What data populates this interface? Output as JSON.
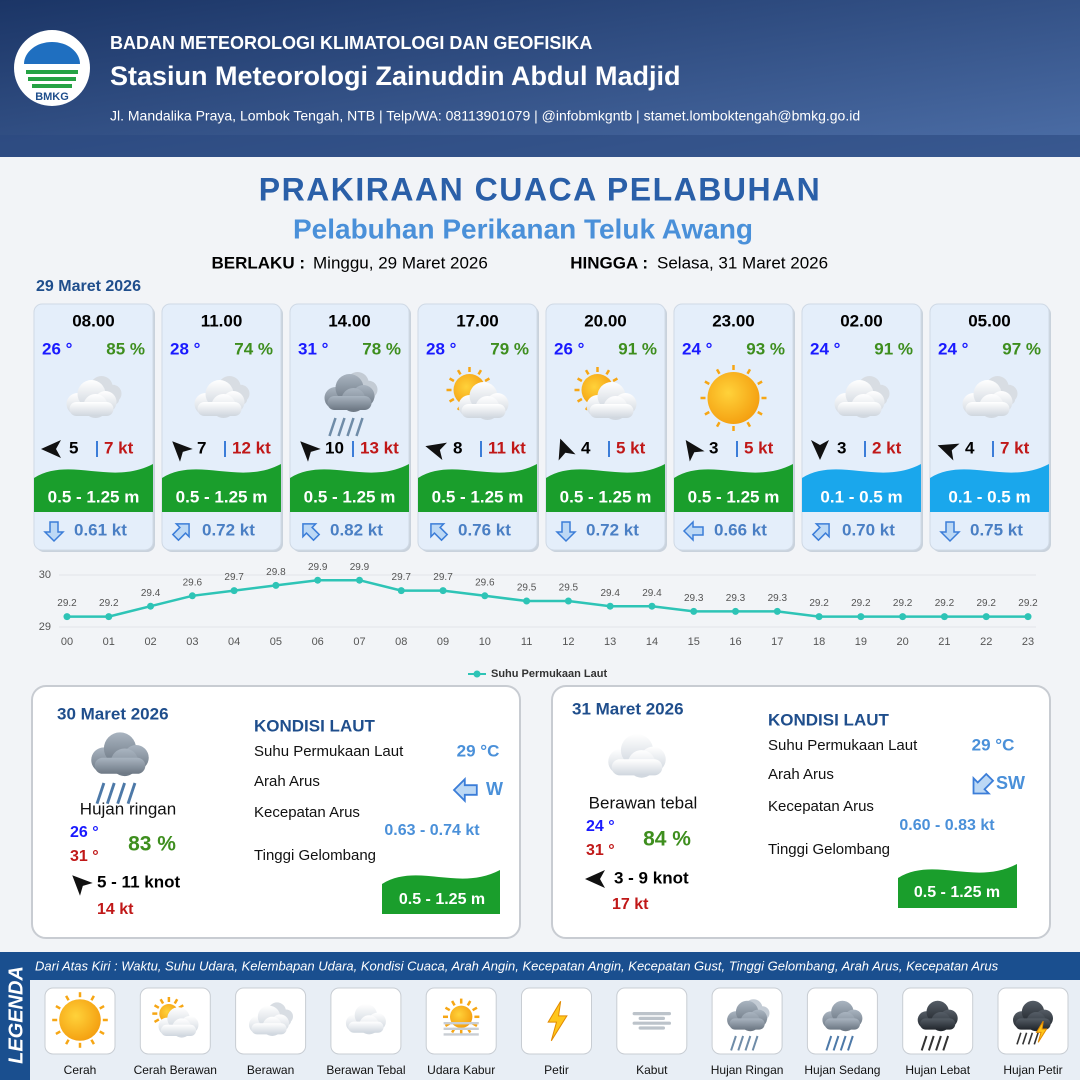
{
  "header": {
    "logo": "BMKG",
    "agency": "BADAN METEOROLOGI KLIMATOLOGI DAN GEOFISIKA",
    "station": "Stasiun Meteorologi Zainuddin Abdul Madjid",
    "address": "Jl. Mandalika Praya, Lombok Tengah, NTB | Telp/WA: 08113901079 | @infobmkgntb | stamet.lomboktengah@bmkg.go.id"
  },
  "title": "PRAKIRAAN CUACA PELABUHAN",
  "subtitle": "Pelabuhan Perikanan Teluk Awang",
  "validity": {
    "from_label": "BERLAKU :",
    "from": "Minggu, 29 Maret 2026",
    "to_label": "HINGGA :",
    "to": "Selasa, 31 Maret 2026"
  },
  "today": {
    "date": "29 Maret 2026",
    "cards": [
      {
        "time": "08.00",
        "temp": "26 °",
        "humidity": "85 %",
        "wind": "5",
        "gust": "7 kt",
        "wave": "0.5 - 1.25 m",
        "wave_color": "#1a9e2c",
        "current": "0.61 kt"
      },
      {
        "time": "11.00",
        "temp": "28 °",
        "humidity": "74 %",
        "wind": "7",
        "gust": "12 kt",
        "wave": "0.5 - 1.25 m",
        "wave_color": "#1a9e2c",
        "current": "0.72 kt"
      },
      {
        "time": "14.00",
        "temp": "31 °",
        "humidity": "78 %",
        "wind": "10",
        "gust": "13 kt",
        "wave": "0.5 - 1.25 m",
        "wave_color": "#1a9e2c",
        "current": "0.82 kt"
      },
      {
        "time": "17.00",
        "temp": "28 °",
        "humidity": "79 %",
        "wind": "8",
        "gust": "11 kt",
        "wave": "0.5 - 1.25 m",
        "wave_color": "#1a9e2c",
        "current": "0.76 kt"
      },
      {
        "time": "20.00",
        "temp": "26 °",
        "humidity": "91 %",
        "wind": "4",
        "gust": "5 kt",
        "wave": "0.5 - 1.25 m",
        "wave_color": "#1a9e2c",
        "current": "0.72 kt"
      },
      {
        "time": "23.00",
        "temp": "24 °",
        "humidity": "93 %",
        "wind": "3",
        "gust": "5 kt",
        "wave": "0.5 - 1.25 m",
        "wave_color": "#1a9e2c",
        "current": "0.66 kt"
      },
      {
        "time": "02.00",
        "temp": "24 °",
        "humidity": "91 %",
        "wind": "3",
        "gust": "2 kt",
        "wave": "0.1 - 0.5 m",
        "wave_color": "#1aa7ec",
        "current": "0.70 kt"
      },
      {
        "time": "05.00",
        "temp": "24 °",
        "humidity": "97 %",
        "wind": "4",
        "gust": "7 kt",
        "wave": "0.1 - 0.5 m",
        "wave_color": "#1aa7ec",
        "current": "0.75 kt"
      }
    ]
  },
  "chart_data": {
    "type": "line",
    "categories": [
      "00",
      "01",
      "02",
      "03",
      "04",
      "05",
      "06",
      "07",
      "08",
      "09",
      "10",
      "11",
      "12",
      "13",
      "14",
      "15",
      "16",
      "17",
      "18",
      "19",
      "20",
      "21",
      "22",
      "23"
    ],
    "series": [
      {
        "name": "Suhu Permukaan Laut",
        "color": "#2ec4b6",
        "values": [
          29.2,
          29.2,
          29.4,
          29.6,
          29.7,
          29.8,
          29.9,
          29.9,
          29.7,
          29.7,
          29.6,
          29.5,
          29.5,
          29.4,
          29.4,
          29.3,
          29.3,
          29.3,
          29.2,
          29.2,
          29.2,
          29.2,
          29.2,
          29.2
        ]
      }
    ],
    "ylim": [
      29,
      30
    ],
    "yticks": [
      29,
      30
    ],
    "legend": "bottom"
  },
  "days": [
    {
      "date": "30 Maret 2026",
      "condition": "Hujan ringan",
      "temp_min": "26 °",
      "temp_max": "31 °",
      "humidity": "83 %",
      "wind": "5  - 11 knot",
      "gust": "14 kt",
      "section": "KONDISI LAUT",
      "sst_label": "Suhu Permukaan Laut",
      "sst": "29 °C",
      "dir_label": "Arah Arus",
      "dir": "W",
      "speed_label": "Kecepatan Arus",
      "speed": "0.63 - 0.74 kt",
      "wave_label": "Tinggi Gelombang",
      "wave": "0.5 - 1.25 m"
    },
    {
      "date": "31 Maret 2026",
      "condition": "Berawan tebal",
      "temp_min": "24 °",
      "temp_max": "31 °",
      "humidity": "84 %",
      "wind": "3  - 9 knot",
      "gust": "17 kt",
      "section": "KONDISI LAUT",
      "sst_label": "Suhu Permukaan Laut",
      "sst": "29 °C",
      "dir_label": "Arah Arus",
      "dir": "SW",
      "speed_label": "Kecepatan Arus",
      "speed": "0.60 - 0.83 kt",
      "wave_label": "Tinggi Gelombang",
      "wave": "0.5 - 1.25 m"
    }
  ],
  "legend": {
    "title": "LEGENDA",
    "note": "Dari Atas Kiri : Waktu, Suhu Udara, Kelembapan Udara, Kondisi Cuaca, Arah Angin, Kecepatan Angin, Kecepatan Gust, Tinggi Gelombang, Arah Arus, Kecepatan Arus",
    "items": [
      "Cerah",
      "Cerah Berawan",
      "Berawan",
      "Berawan Tebal",
      "Udara Kabur",
      "Petir",
      "Kabut",
      "Hujan Ringan",
      "Hujan Sedang",
      "Hujan Lebat",
      "Hujan Petir"
    ]
  }
}
